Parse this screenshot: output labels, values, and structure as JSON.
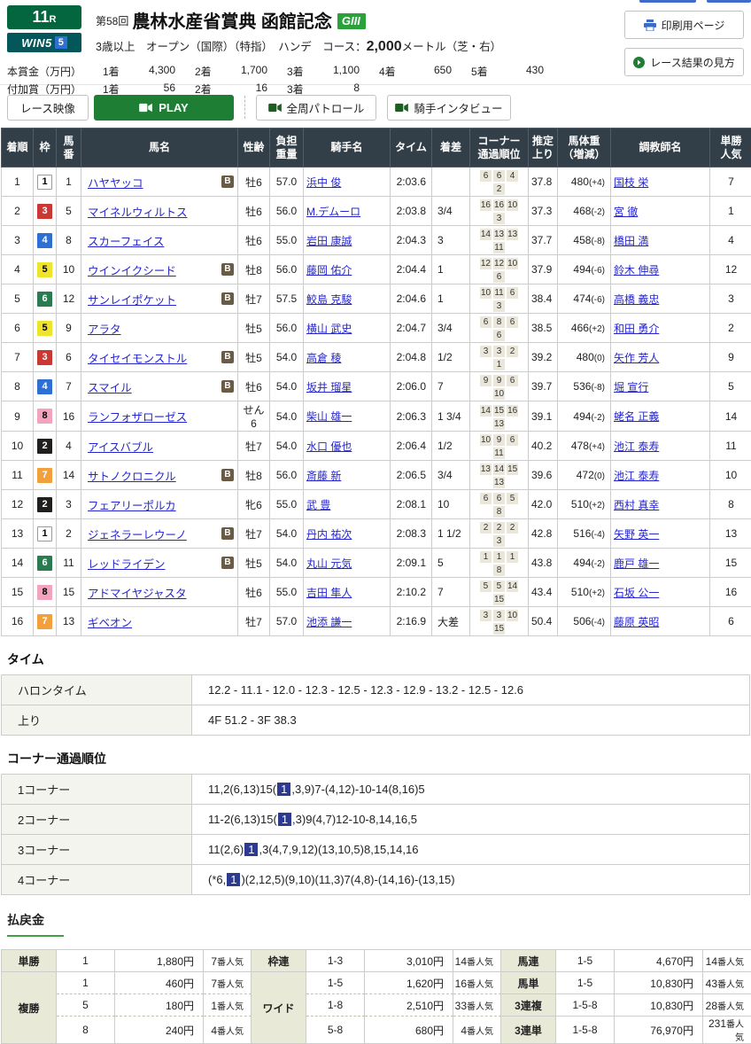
{
  "header": {
    "race_number": "11",
    "race_number_suffix": "R",
    "win5_text": "WIN5",
    "win5_num": "5",
    "race_series": "第58回",
    "race_title": "農林水産省賞典 函館記念",
    "grade": "GIII",
    "conditions": "3歳以上　オープン（国際）（特指）　ハンデ　コース：",
    "distance": "2,000",
    "course_suffix": "メートル（芝・右）",
    "print_button": "印刷用ページ",
    "guide_button": "レース結果の見方",
    "prize_rows": [
      {
        "label": "本賞金（万円）",
        "items": [
          [
            "1着",
            "4,300"
          ],
          [
            "2着",
            "1,700"
          ],
          [
            "3着",
            "1,100"
          ],
          [
            "4着",
            "650"
          ],
          [
            "5着",
            "430"
          ]
        ]
      },
      {
        "label": "付加賞（万円）",
        "items": [
          [
            "1着",
            "56"
          ],
          [
            "2着",
            "16"
          ],
          [
            "3着",
            "8"
          ]
        ]
      }
    ]
  },
  "video": {
    "race_video_label": "レース映像",
    "play_label": "PLAY",
    "patrol_label": "全周パトロール",
    "interview_label": "騎手インタビュー"
  },
  "results": {
    "headers": [
      "着順",
      "枠",
      "馬\n番",
      "馬名",
      "性齢",
      "負担\n重量",
      "騎手名",
      "タイム",
      "着差",
      "コーナー\n通過順位",
      "推定\n上り",
      "馬体重\n（増減）",
      "調教師名",
      "単勝\n人気"
    ],
    "rows": [
      {
        "pos": "1",
        "frame": "1",
        "num": "1",
        "horse": "ハヤヤッコ",
        "blinkers": true,
        "sex_age": "牡6",
        "weight": "57.0",
        "jockey": "浜中 俊",
        "time": "2:03.6",
        "margin": "",
        "corners": [
          "6",
          "6",
          "4",
          "2"
        ],
        "agari": "37.8",
        "body": "480",
        "diff": "(+4)",
        "trainer": "国枝 栄",
        "pop": "7"
      },
      {
        "pos": "2",
        "frame": "3",
        "num": "5",
        "horse": "マイネルウィルトス",
        "blinkers": false,
        "sex_age": "牡6",
        "weight": "56.0",
        "jockey": "M.デムーロ",
        "time": "2:03.8",
        "margin": "3/4",
        "corners": [
          "16",
          "16",
          "10",
          "3"
        ],
        "agari": "37.3",
        "body": "468",
        "diff": "(-2)",
        "trainer": "宮 徹",
        "pop": "1"
      },
      {
        "pos": "3",
        "frame": "4",
        "num": "8",
        "horse": "スカーフェイス",
        "blinkers": false,
        "sex_age": "牡6",
        "weight": "55.0",
        "jockey": "岩田 康誠",
        "time": "2:04.3",
        "margin": "3",
        "corners": [
          "14",
          "13",
          "13",
          "11"
        ],
        "agari": "37.7",
        "body": "458",
        "diff": "(-8)",
        "trainer": "橋田 満",
        "pop": "4"
      },
      {
        "pos": "4",
        "frame": "5",
        "num": "10",
        "horse": "ウインイクシード",
        "blinkers": true,
        "sex_age": "牡8",
        "weight": "56.0",
        "jockey": "藤岡 佑介",
        "time": "2:04.4",
        "margin": "1",
        "corners": [
          "12",
          "12",
          "10",
          "6"
        ],
        "agari": "37.9",
        "body": "494",
        "diff": "(-6)",
        "trainer": "鈴木 伸尋",
        "pop": "12"
      },
      {
        "pos": "5",
        "frame": "6",
        "num": "12",
        "horse": "サンレイポケット",
        "blinkers": true,
        "sex_age": "牡7",
        "weight": "57.5",
        "jockey": "鮫島 克駿",
        "time": "2:04.6",
        "margin": "1",
        "corners": [
          "10",
          "11",
          "6",
          "3"
        ],
        "agari": "38.4",
        "body": "474",
        "diff": "(-6)",
        "trainer": "高橋 義忠",
        "pop": "3"
      },
      {
        "pos": "6",
        "frame": "5",
        "num": "9",
        "horse": "アラタ",
        "blinkers": false,
        "sex_age": "牡5",
        "weight": "56.0",
        "jockey": "横山 武史",
        "time": "2:04.7",
        "margin": "3/4",
        "corners": [
          "6",
          "8",
          "6",
          "6"
        ],
        "agari": "38.5",
        "body": "466",
        "diff": "(+2)",
        "trainer": "和田 勇介",
        "pop": "2"
      },
      {
        "pos": "7",
        "frame": "3",
        "num": "6",
        "horse": "タイセイモンストル",
        "blinkers": true,
        "sex_age": "牡5",
        "weight": "54.0",
        "jockey": "高倉 稜",
        "time": "2:04.8",
        "margin": "1/2",
        "corners": [
          "3",
          "3",
          "2",
          "1"
        ],
        "agari": "39.2",
        "body": "480",
        "diff": "(0)",
        "trainer": "矢作 芳人",
        "pop": "9"
      },
      {
        "pos": "8",
        "frame": "4",
        "num": "7",
        "horse": "スマイル",
        "blinkers": true,
        "sex_age": "牡6",
        "weight": "54.0",
        "jockey": "坂井 瑠星",
        "time": "2:06.0",
        "margin": "7",
        "corners": [
          "9",
          "9",
          "6",
          "10"
        ],
        "agari": "39.7",
        "body": "536",
        "diff": "(-8)",
        "trainer": "堀 宣行",
        "pop": "5"
      },
      {
        "pos": "9",
        "frame": "8",
        "num": "16",
        "horse": "ランフォザローゼス",
        "blinkers": false,
        "sex_age": "せん6",
        "weight": "54.0",
        "jockey": "柴山 雄一",
        "time": "2:06.3",
        "margin": "1 3/4",
        "corners": [
          "14",
          "15",
          "16",
          "13"
        ],
        "agari": "39.1",
        "body": "494",
        "diff": "(-2)",
        "trainer": "蛯名 正義",
        "pop": "14"
      },
      {
        "pos": "10",
        "frame": "2",
        "num": "4",
        "horse": "アイスバブル",
        "blinkers": false,
        "sex_age": "牡7",
        "weight": "54.0",
        "jockey": "水口 優也",
        "time": "2:06.4",
        "margin": "1/2",
        "corners": [
          "10",
          "9",
          "6",
          "11"
        ],
        "agari": "40.2",
        "body": "478",
        "diff": "(+4)",
        "trainer": "池江 泰寿",
        "pop": "11"
      },
      {
        "pos": "11",
        "frame": "7",
        "num": "14",
        "horse": "サトノクロニクル",
        "blinkers": true,
        "sex_age": "牡8",
        "weight": "56.0",
        "jockey": "斎藤 新",
        "time": "2:06.5",
        "margin": "3/4",
        "corners": [
          "13",
          "14",
          "15",
          "13"
        ],
        "agari": "39.6",
        "body": "472",
        "diff": "(0)",
        "trainer": "池江 泰寿",
        "pop": "10"
      },
      {
        "pos": "12",
        "frame": "2",
        "num": "3",
        "horse": "フェアリーポルカ",
        "blinkers": false,
        "sex_age": "牝6",
        "weight": "55.0",
        "jockey": "武 豊",
        "time": "2:08.1",
        "margin": "10",
        "corners": [
          "6",
          "6",
          "5",
          "8"
        ],
        "agari": "42.0",
        "body": "510",
        "diff": "(+2)",
        "trainer": "西村 真幸",
        "pop": "8"
      },
      {
        "pos": "13",
        "frame": "1",
        "num": "2",
        "horse": "ジェネラーレウーノ",
        "blinkers": true,
        "sex_age": "牡7",
        "weight": "54.0",
        "jockey": "丹内 祐次",
        "time": "2:08.3",
        "margin": "1 1/2",
        "corners": [
          "2",
          "2",
          "2",
          "3"
        ],
        "agari": "42.8",
        "body": "516",
        "diff": "(-4)",
        "trainer": "矢野 英一",
        "pop": "13"
      },
      {
        "pos": "14",
        "frame": "6",
        "num": "11",
        "horse": "レッドライデン",
        "blinkers": true,
        "sex_age": "牡5",
        "weight": "54.0",
        "jockey": "丸山 元気",
        "time": "2:09.1",
        "margin": "5",
        "corners": [
          "1",
          "1",
          "1",
          "8"
        ],
        "agari": "43.8",
        "body": "494",
        "diff": "(-2)",
        "trainer": "鹿戸 雄一",
        "pop": "15"
      },
      {
        "pos": "15",
        "frame": "8",
        "num": "15",
        "horse": "アドマイヤジャスタ",
        "blinkers": false,
        "sex_age": "牡6",
        "weight": "55.0",
        "jockey": "吉田 隼人",
        "time": "2:10.2",
        "margin": "7",
        "corners": [
          "5",
          "5",
          "14",
          "15"
        ],
        "agari": "43.4",
        "body": "510",
        "diff": "(+2)",
        "trainer": "石坂 公一",
        "pop": "16"
      },
      {
        "pos": "16",
        "frame": "7",
        "num": "13",
        "horse": "ギベオン",
        "blinkers": false,
        "sex_age": "牡7",
        "weight": "57.0",
        "jockey": "池添 謙一",
        "time": "2:16.9",
        "margin": "大差",
        "corners": [
          "3",
          "3",
          "10",
          "15"
        ],
        "agari": "50.4",
        "body": "506",
        "diff": "(-4)",
        "trainer": "藤原 英昭",
        "pop": "6"
      }
    ]
  },
  "time_section": {
    "title": "タイム",
    "rows": [
      {
        "label": "ハロンタイム",
        "value": "12.2 - 11.1 - 12.0 - 12.3 - 12.5 - 12.3 - 12.9 - 13.2 - 12.5 - 12.6"
      },
      {
        "label": "上り",
        "value": "4F 51.2 - 3F 38.3"
      }
    ]
  },
  "corner_section": {
    "title": "コーナー通過順位",
    "rows": [
      {
        "label": "1コーナー",
        "pre": "11,2(6,13)15(",
        "hl": "1",
        "post": ",3,9)7-(4,12)-10-14(8,16)5"
      },
      {
        "label": "2コーナー",
        "pre": "11-2(6,13)15(",
        "hl": "1",
        "post": ",3)9(4,7)12-10-8,14,16,5"
      },
      {
        "label": "3コーナー",
        "pre": "11(2,6)",
        "hl": "1",
        "post": ",3(4,7,9,12)(13,10,5)8,15,14,16"
      },
      {
        "label": "4コーナー",
        "pre": "(*6,",
        "hl": "1",
        "post": ")(2,12,5)(9,10)(11,3)7(4,8)-(14,16)-(13,15)"
      }
    ]
  },
  "payout": {
    "title": "払戻金",
    "pop_suffix": "番人気",
    "groups": [
      [
        {
          "label": "単勝",
          "rows": [
            [
              "1",
              "1,880円",
              "7"
            ]
          ]
        },
        {
          "label": "複勝",
          "rows": [
            [
              "1",
              "460円",
              "7"
            ],
            [
              "5",
              "180円",
              "1"
            ],
            [
              "8",
              "240円",
              "4"
            ]
          ]
        }
      ],
      [
        {
          "label": "枠連",
          "rows": [
            [
              "1-3",
              "3,010円",
              "14"
            ]
          ]
        },
        {
          "label": "ワイド",
          "rows": [
            [
              "1-5",
              "1,620円",
              "16"
            ],
            [
              "1-8",
              "2,510円",
              "33"
            ],
            [
              "5-8",
              "680円",
              "4"
            ]
          ]
        }
      ],
      [
        {
          "label": "馬連",
          "rows": [
            [
              "1-5",
              "4,670円",
              "14"
            ]
          ]
        },
        {
          "label": "馬単",
          "rows": [
            [
              "1-5",
              "10,830円",
              "43"
            ]
          ]
        },
        {
          "label": "3連複",
          "rows": [
            [
              "1-5-8",
              "10,830円",
              "28"
            ]
          ]
        },
        {
          "label": "3連単",
          "rows": [
            [
              "1-5-8",
              "76,970円",
              "231"
            ]
          ]
        }
      ]
    ]
  }
}
